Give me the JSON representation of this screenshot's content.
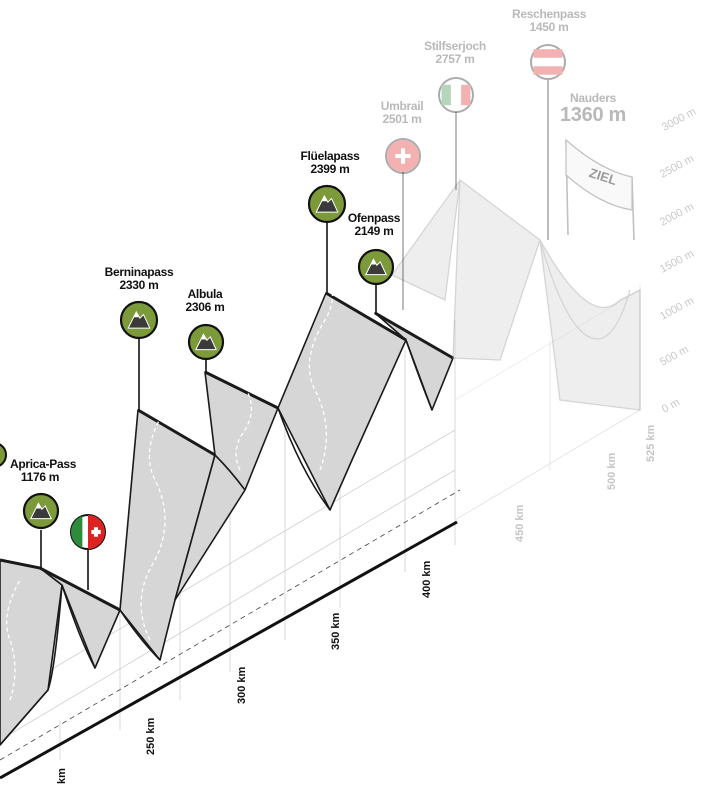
{
  "passes": [
    {
      "name": "Aprica-Pass",
      "elevation": "1176 m",
      "flag": "",
      "faded": false
    },
    {
      "name": "Berninapass",
      "elevation": "2330 m",
      "flag": "",
      "faded": false
    },
    {
      "name": "Albula",
      "elevation": "2306 m",
      "flag": "",
      "faded": false
    },
    {
      "name": "Flüelapass",
      "elevation": "2399 m",
      "flag": "",
      "faded": false
    },
    {
      "name": "Ofenpass",
      "elevation": "2149 m",
      "flag": "",
      "faded": false
    },
    {
      "name": "Umbrail",
      "elevation": "2501 m",
      "flag": "switzerland",
      "faded": true
    },
    {
      "name": "Stilfserjoch",
      "elevation": "2757 m",
      "flag": "italy",
      "faded": true
    },
    {
      "name": "Reschenpass",
      "elevation": "1450 m",
      "flag": "austria",
      "faded": true
    }
  ],
  "finish": {
    "town": "Nauders",
    "elevation": "1360 m",
    "banner": "ZIEL"
  },
  "border_flag": "italy-switzerland",
  "distance_markers": [
    {
      "label": "km",
      "faded": false
    },
    {
      "label": "250 km",
      "faded": false
    },
    {
      "label": "300 km",
      "faded": false
    },
    {
      "label": "350 km",
      "faded": false
    },
    {
      "label": "400 km",
      "faded": false
    },
    {
      "label": "450 km",
      "faded": true
    },
    {
      "label": "500 km",
      "faded": true
    },
    {
      "label": "525 km",
      "faded": true
    }
  ],
  "elevation_scale": [
    "0 m",
    "500 m",
    "1000 m",
    "1500 m",
    "2000 m",
    "2500 m",
    "3000 m"
  ],
  "colors": {
    "profile_fill": "#d6d6d6",
    "profile_stroke": "#1a1a1a",
    "mountain_badge": "#7c9a3a",
    "faded": "#b9b9b9"
  },
  "icons": {
    "mountain": "mountain-peak-icon",
    "flag": "country-flag-icon"
  }
}
